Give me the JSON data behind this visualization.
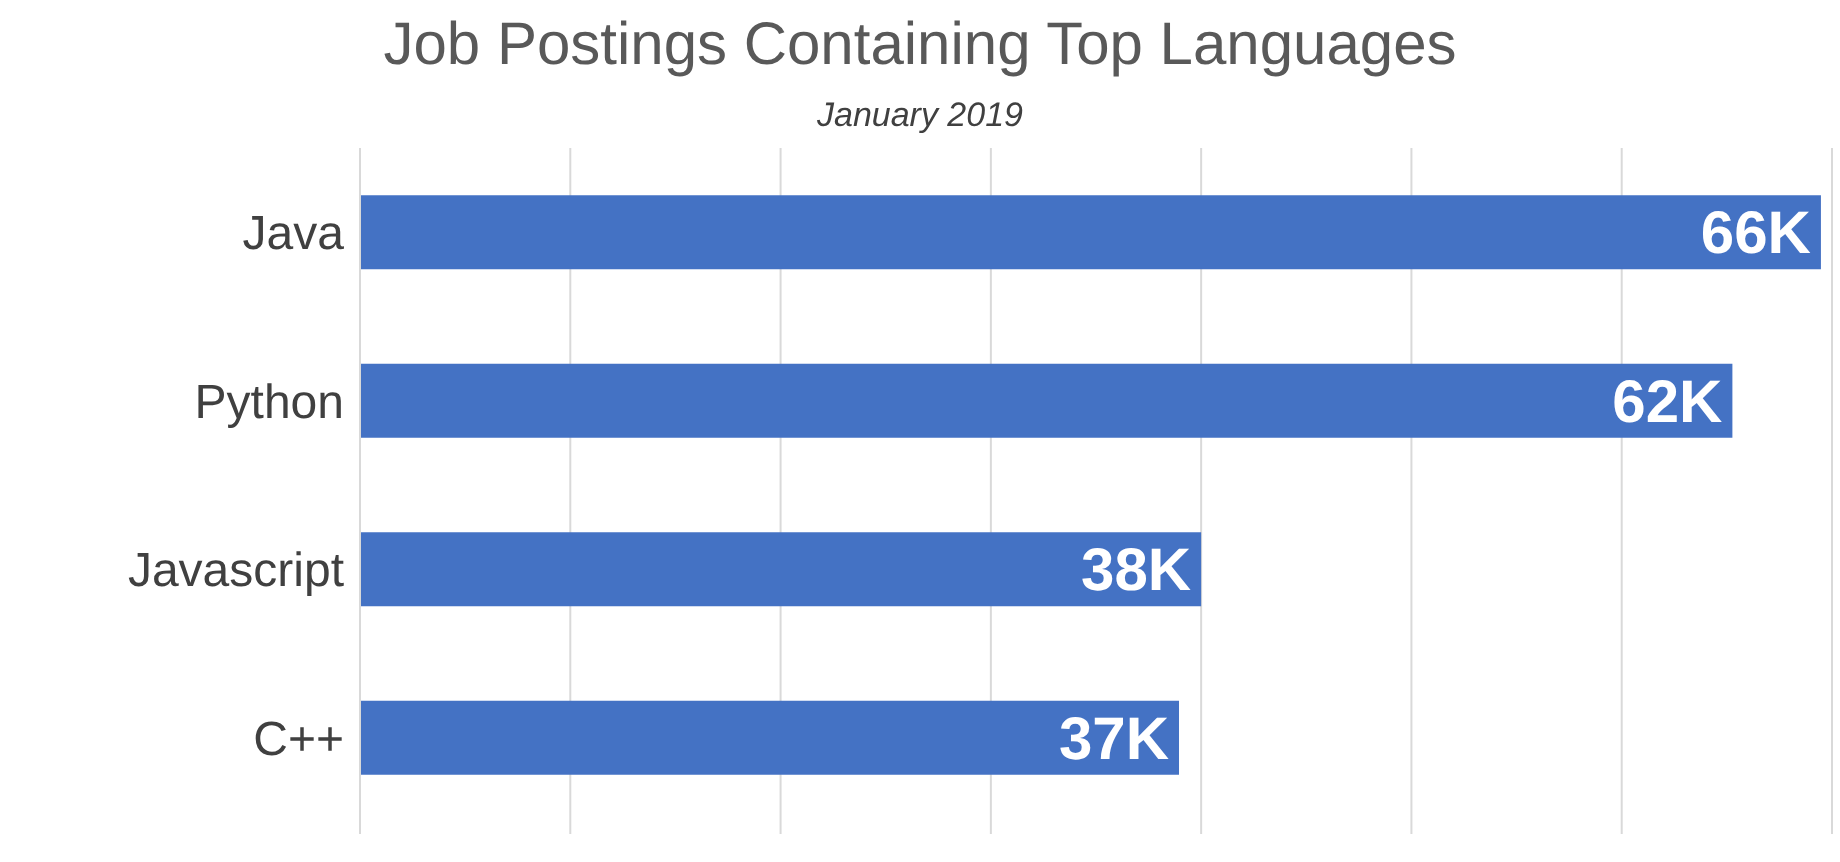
{
  "chart_data": {
    "type": "bar",
    "orientation": "horizontal",
    "title": "Job Postings Containing Top Languages",
    "subtitle": "January 2019",
    "categories": [
      "Java",
      "Python",
      "Javascript",
      "C++"
    ],
    "values": [
      66000,
      62000,
      38000,
      37000
    ],
    "value_labels": [
      "66K",
      "62K",
      "38K",
      "37K"
    ],
    "color": "#4472c4",
    "grid": "x",
    "tick_labels": "y"
  }
}
